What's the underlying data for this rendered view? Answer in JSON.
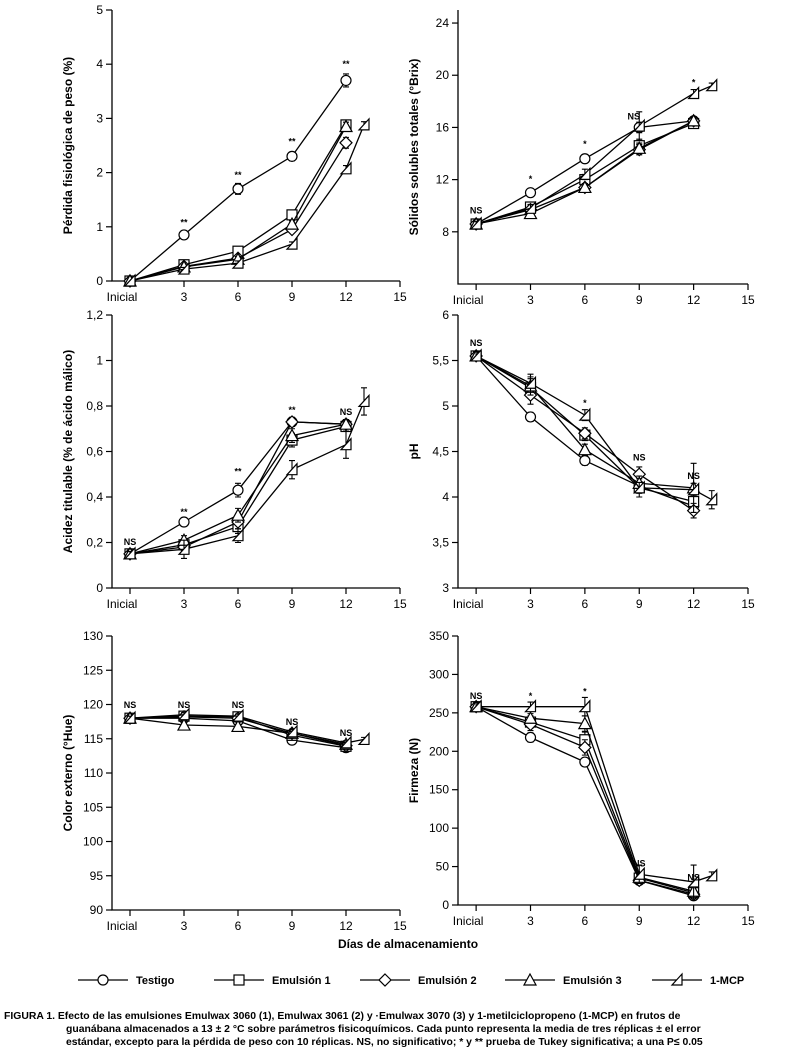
{
  "figure": {
    "x_axis_title": "Días de almacenamiento",
    "caption_lines": [
      "FIGURA 1. Efecto de las emulsiones Emulwax 3060 (1), Emulwax 3061 (2) y ·Emulwax 3070 (3) y 1-metilciclopropeno (1-MCP) en frutos de",
      "guanábana almacenados a 13 ± 2 °C sobre parámetros fisicoquímicos. Cada punto representa la media de tres réplicas ± el error",
      "estándar, excepto para la pérdida de peso con 10 réplicas. NS, no significativo; * y ** prueba de Tukey significativa; a una P≤ 0.05"
    ]
  },
  "legend": [
    {
      "label": "Testigo",
      "marker": "circle"
    },
    {
      "label": "Emulsión 1",
      "marker": "square"
    },
    {
      "label": "Emulsión 2",
      "marker": "diamond"
    },
    {
      "label": "Emulsión 3",
      "marker": "triangle"
    },
    {
      "label": "1-MCP",
      "marker": "halftriangle"
    }
  ],
  "chart_data": [
    {
      "type": "line",
      "ylabel": "Pérdida fisiológica de peso (%)",
      "xlabel": "",
      "xlim": [
        -1,
        15
      ],
      "ylim": [
        0,
        5
      ],
      "xticks": [
        0,
        3,
        6,
        9,
        12,
        15
      ],
      "xtick_labels": [
        "Inicial",
        "3",
        "6",
        "9",
        "12",
        "15"
      ],
      "yticks": [
        0,
        1,
        2,
        3,
        4,
        5
      ],
      "ytick_labels": [
        "0",
        "1",
        "2",
        "3",
        "4",
        "5"
      ],
      "grid": false,
      "series": [
        {
          "name": "Testigo",
          "x": [
            0,
            3,
            6,
            9,
            12
          ],
          "values": [
            0,
            0.85,
            1.7,
            2.3,
            3.7
          ],
          "err": [
            0,
            0.05,
            0.1,
            0.08,
            0.12
          ]
        },
        {
          "name": "Emulsión 1",
          "x": [
            0,
            3,
            6,
            9,
            12
          ],
          "values": [
            0,
            0.3,
            0.55,
            1.22,
            2.88
          ],
          "err": [
            0,
            0.04,
            0.06,
            0.07,
            0.08
          ]
        },
        {
          "name": "Emulsión 2",
          "x": [
            0,
            3,
            6,
            9,
            12
          ],
          "values": [
            0,
            0.27,
            0.42,
            0.95,
            2.55
          ],
          "err": [
            0,
            0.04,
            0.05,
            0.06,
            0.1
          ]
        },
        {
          "name": "Emulsión 3",
          "x": [
            0,
            3,
            6,
            9,
            12
          ],
          "values": [
            0,
            0.26,
            0.4,
            1.05,
            2.85
          ],
          "err": [
            0,
            0.04,
            0.05,
            0.06,
            0.08
          ]
        },
        {
          "name": "1-MCP",
          "x": [
            0,
            3,
            6,
            9,
            12,
            13
          ],
          "values": [
            0,
            0.22,
            0.33,
            0.68,
            2.07,
            2.88
          ],
          "err": [
            0,
            0.03,
            0.04,
            0.04,
            0.06,
            0.06
          ]
        }
      ],
      "annotations": [
        {
          "x": 3,
          "y": 1.02,
          "text": "**"
        },
        {
          "x": 6,
          "y": 1.9,
          "text": "**"
        },
        {
          "x": 9,
          "y": 2.52,
          "text": "**"
        },
        {
          "x": 12,
          "y": 3.95,
          "text": "**"
        }
      ]
    },
    {
      "type": "line",
      "ylabel": "Sólidos solubles totales (°Brix)",
      "xlabel": "",
      "xlim": [
        -1,
        15
      ],
      "ylim": [
        4,
        25
      ],
      "xticks": [
        0,
        3,
        6,
        9,
        12,
        15
      ],
      "xtick_labels": [
        "Inicial",
        "3",
        "6",
        "9",
        "12",
        "15"
      ],
      "yticks": [
        8,
        12,
        16,
        20,
        24
      ],
      "ytick_labels": [
        "8",
        "12",
        "16",
        "20",
        "24"
      ],
      "grid": false,
      "series": [
        {
          "name": "Testigo",
          "x": [
            0,
            3,
            6,
            9,
            12
          ],
          "values": [
            8.6,
            11.0,
            13.6,
            16.0,
            16.5
          ],
          "err": [
            0.2,
            0.3,
            0.3,
            0.4,
            0.3
          ]
        },
        {
          "name": "Emulsión 1",
          "x": [
            0,
            3,
            6,
            9,
            12
          ],
          "values": [
            8.6,
            9.9,
            12.0,
            14.6,
            16.3
          ],
          "err": [
            0.2,
            0.3,
            0.4,
            0.5,
            0.3
          ]
        },
        {
          "name": "Emulsión 2",
          "x": [
            0,
            3,
            6,
            9,
            12
          ],
          "values": [
            8.6,
            9.7,
            11.4,
            14.3,
            16.5
          ],
          "err": [
            0.2,
            0.3,
            0.3,
            0.4,
            0.3
          ]
        },
        {
          "name": "Emulsión 3",
          "x": [
            0,
            3,
            6,
            9,
            12
          ],
          "values": [
            8.6,
            9.4,
            11.4,
            14.4,
            16.5
          ],
          "err": [
            0.2,
            0.3,
            0.3,
            0.4,
            0.3
          ]
        },
        {
          "name": "1-MCP",
          "x": [
            0,
            3,
            6,
            9,
            12,
            13
          ],
          "values": [
            8.6,
            9.8,
            12.4,
            16.1,
            18.6,
            19.2
          ],
          "err": [
            0.2,
            0.3,
            0.4,
            1.1,
            0.3,
            0.2
          ]
        }
      ],
      "annotations": [
        {
          "x": 0,
          "y": 9.4,
          "text": "NS"
        },
        {
          "x": 3,
          "y": 11.8,
          "text": "*"
        },
        {
          "x": 6,
          "y": 14.5,
          "text": "*"
        },
        {
          "x": 8.7,
          "y": 16.6,
          "text": "NS"
        },
        {
          "x": 12,
          "y": 19.2,
          "text": "*"
        }
      ]
    },
    {
      "type": "line",
      "ylabel": "Acidez titulable (% de ácido málico)",
      "xlabel": "",
      "xlim": [
        -1,
        15
      ],
      "ylim": [
        0,
        1.2
      ],
      "xticks": [
        0,
        3,
        6,
        9,
        12,
        15
      ],
      "xtick_labels": [
        "Inicial",
        "3",
        "6",
        "9",
        "12",
        "15"
      ],
      "yticks": [
        0,
        0.2,
        0.4,
        0.6,
        0.8,
        1.0,
        1.2
      ],
      "ytick_labels": [
        "0",
        "0,2",
        "0,4",
        "0,6",
        "0,8",
        "1",
        "1,2"
      ],
      "grid": false,
      "series": [
        {
          "name": "Testigo",
          "x": [
            0,
            3,
            6,
            9,
            12
          ],
          "values": [
            0.15,
            0.29,
            0.43,
            0.73,
            0.72
          ],
          "err": [
            0.01,
            0.01,
            0.03,
            0.02,
            0.02
          ]
        },
        {
          "name": "Emulsión 1",
          "x": [
            0,
            3,
            6,
            9,
            12
          ],
          "values": [
            0.15,
            0.19,
            0.27,
            0.65,
            0.71
          ],
          "err": [
            0.01,
            0.02,
            0.03,
            0.03,
            0.02
          ]
        },
        {
          "name": "Emulsión 2",
          "x": [
            0,
            3,
            6,
            9,
            12
          ],
          "values": [
            0.15,
            0.18,
            0.29,
            0.73,
            0.72
          ],
          "err": [
            0.01,
            0.02,
            0.03,
            0.02,
            0.02
          ]
        },
        {
          "name": "Emulsión 3",
          "x": [
            0,
            3,
            6,
            9,
            12
          ],
          "values": [
            0.15,
            0.21,
            0.32,
            0.67,
            0.72
          ],
          "err": [
            0.01,
            0.02,
            0.03,
            0.03,
            0.02
          ]
        },
        {
          "name": "1-MCP",
          "x": [
            0,
            3,
            6,
            9,
            12,
            13
          ],
          "values": [
            0.15,
            0.17,
            0.23,
            0.52,
            0.63,
            0.82
          ],
          "err": [
            0.01,
            0.04,
            0.03,
            0.04,
            0.06,
            0.06
          ]
        }
      ],
      "annotations": [
        {
          "x": 0,
          "y": 0.19,
          "text": "NS"
        },
        {
          "x": 3,
          "y": 0.32,
          "text": "**"
        },
        {
          "x": 6,
          "y": 0.5,
          "text": "**"
        },
        {
          "x": 9,
          "y": 0.77,
          "text": "**"
        },
        {
          "x": 12,
          "y": 0.76,
          "text": "NS"
        }
      ]
    },
    {
      "type": "line",
      "ylabel": "pH",
      "xlabel": "",
      "xlim": [
        -1,
        15
      ],
      "ylim": [
        3,
        6
      ],
      "xticks": [
        0,
        3,
        6,
        9,
        12,
        15
      ],
      "xtick_labels": [
        "Inicial",
        "3",
        "6",
        "9",
        "12",
        "15"
      ],
      "yticks": [
        3,
        3.5,
        4,
        4.5,
        5,
        5.5,
        6
      ],
      "ytick_labels": [
        "3",
        "3,5",
        "4",
        "4,5",
        "5",
        "5,5",
        "6"
      ],
      "grid": false,
      "series": [
        {
          "name": "Testigo",
          "x": [
            0,
            3,
            6,
            9,
            12
          ],
          "values": [
            5.55,
            4.88,
            4.4,
            4.12,
            3.9
          ],
          "err": [
            0.05,
            0.05,
            0.05,
            0.05,
            0.06
          ]
        },
        {
          "name": "Emulsión 1",
          "x": [
            0,
            3,
            6,
            9,
            12
          ],
          "values": [
            5.55,
            5.2,
            4.68,
            4.1,
            3.95
          ],
          "err": [
            0.05,
            0.1,
            0.06,
            0.1,
            0.06
          ]
        },
        {
          "name": "Emulsión 2",
          "x": [
            0,
            3,
            6,
            9,
            12
          ],
          "values": [
            5.55,
            5.12,
            4.7,
            4.25,
            3.85
          ],
          "err": [
            0.05,
            0.1,
            0.06,
            0.08,
            0.08
          ]
        },
        {
          "name": "Emulsión 3",
          "x": [
            0,
            3,
            6,
            9,
            12
          ],
          "values": [
            5.55,
            5.22,
            4.52,
            4.15,
            4.1
          ],
          "err": [
            0.05,
            0.1,
            0.06,
            0.08,
            0.27
          ]
        },
        {
          "name": "1-MCP",
          "x": [
            0,
            3,
            6,
            9,
            12,
            13
          ],
          "values": [
            5.55,
            5.25,
            4.9,
            4.1,
            4.08,
            3.97
          ],
          "err": [
            0.05,
            0.1,
            0.06,
            0.06,
            0.07,
            0.1
          ]
        }
      ],
      "annotations": [
        {
          "x": 0,
          "y": 5.66,
          "text": "NS"
        },
        {
          "x": 6,
          "y": 5.0,
          "text": "*"
        },
        {
          "x": 9,
          "y": 4.4,
          "text": "NS"
        },
        {
          "x": 12,
          "y": 4.2,
          "text": "NS"
        }
      ]
    },
    {
      "type": "line",
      "ylabel": "Color externo (°Hue)",
      "xlabel": "",
      "xlim": [
        -1,
        15
      ],
      "ylim": [
        90,
        130
      ],
      "xticks": [
        0,
        3,
        6,
        9,
        12,
        15
      ],
      "xtick_labels": [
        "Inicial",
        "3",
        "6",
        "9",
        "12",
        "15"
      ],
      "yticks": [
        90,
        95,
        100,
        105,
        110,
        115,
        120,
        125,
        130
      ],
      "ytick_labels": [
        "90",
        "95",
        "100",
        "105",
        "110",
        "115",
        "120",
        "125",
        "130"
      ],
      "grid": false,
      "series": [
        {
          "name": "Testigo",
          "x": [
            0,
            3,
            6,
            9,
            12
          ],
          "values": [
            118.0,
            118.0,
            117.6,
            114.8,
            113.7
          ],
          "err": [
            0.3,
            0.3,
            0.3,
            0.4,
            0.3
          ]
        },
        {
          "name": "Emulsión 1",
          "x": [
            0,
            3,
            6,
            9,
            12
          ],
          "values": [
            118.0,
            118.3,
            118.2,
            115.5,
            113.9
          ],
          "err": [
            0.3,
            0.3,
            0.3,
            0.4,
            0.3
          ]
        },
        {
          "name": "Emulsión 2",
          "x": [
            0,
            3,
            6,
            9,
            12
          ],
          "values": [
            118.0,
            118.2,
            118.0,
            115.8,
            114.0
          ],
          "err": [
            0.3,
            0.3,
            0.3,
            0.4,
            0.3
          ]
        },
        {
          "name": "Emulsión 3",
          "x": [
            0,
            3,
            6,
            9,
            12
          ],
          "values": [
            118.0,
            117.0,
            116.8,
            115.8,
            114.2
          ],
          "err": [
            0.3,
            0.3,
            0.3,
            0.4,
            0.3
          ]
        },
        {
          "name": "1-MCP",
          "x": [
            0,
            3,
            6,
            9,
            12,
            13
          ],
          "values": [
            118.0,
            118.5,
            118.3,
            116.0,
            114.4,
            114.9
          ],
          "err": [
            0.3,
            0.3,
            0.3,
            0.4,
            0.3,
            0.3
          ]
        }
      ],
      "annotations": [
        {
          "x": 0,
          "y": 119.5,
          "text": "NS"
        },
        {
          "x": 3,
          "y": 119.5,
          "text": "NS"
        },
        {
          "x": 6,
          "y": 119.5,
          "text": "NS"
        },
        {
          "x": 9,
          "y": 117.0,
          "text": "NS"
        },
        {
          "x": 12,
          "y": 115.4,
          "text": "NS"
        }
      ]
    },
    {
      "type": "line",
      "ylabel": "Firmeza (N)",
      "xlabel": "",
      "xlim": [
        -1,
        15
      ],
      "ylim": [
        0,
        350
      ],
      "xticks": [
        0,
        3,
        6,
        9,
        12,
        15
      ],
      "xtick_labels": [
        "Inicial",
        "3",
        "6",
        "9",
        "12",
        "15"
      ],
      "yticks": [
        0,
        50,
        100,
        150,
        200,
        250,
        300,
        350
      ],
      "ytick_labels": [
        "0",
        "50",
        "100",
        "150",
        "200",
        "250",
        "300",
        "350"
      ],
      "grid": false,
      "series": [
        {
          "name": "Testigo",
          "x": [
            0,
            3,
            6,
            9,
            12
          ],
          "values": [
            258,
            218,
            186,
            32,
            12
          ],
          "err": [
            6,
            6,
            5,
            4,
            3
          ]
        },
        {
          "name": "Emulsión 1",
          "x": [
            0,
            3,
            6,
            9,
            12
          ],
          "values": [
            258,
            238,
            215,
            35,
            16
          ],
          "err": [
            6,
            8,
            10,
            5,
            4
          ]
        },
        {
          "name": "Emulsión 2",
          "x": [
            0,
            3,
            6,
            9,
            12
          ],
          "values": [
            258,
            235,
            205,
            32,
            14
          ],
          "err": [
            6,
            8,
            10,
            5,
            4
          ]
        },
        {
          "name": "Emulsión 3",
          "x": [
            0,
            3,
            6,
            9,
            12
          ],
          "values": [
            258,
            243,
            236,
            36,
            18
          ],
          "err": [
            6,
            6,
            10,
            5,
            8
          ]
        },
        {
          "name": "1-MCP",
          "x": [
            0,
            3,
            6,
            9,
            12,
            13
          ],
          "values": [
            258,
            258,
            258,
            40,
            30,
            38
          ],
          "err": [
            6,
            6,
            12,
            12,
            22,
            5
          ]
        }
      ],
      "annotations": [
        {
          "x": 0,
          "y": 268,
          "text": "NS"
        },
        {
          "x": 3,
          "y": 268,
          "text": "*"
        },
        {
          "x": 6,
          "y": 274,
          "text": "*"
        },
        {
          "x": 9,
          "y": 50,
          "text": "NS"
        },
        {
          "x": 12,
          "y": 32,
          "text": "NS"
        }
      ]
    }
  ]
}
